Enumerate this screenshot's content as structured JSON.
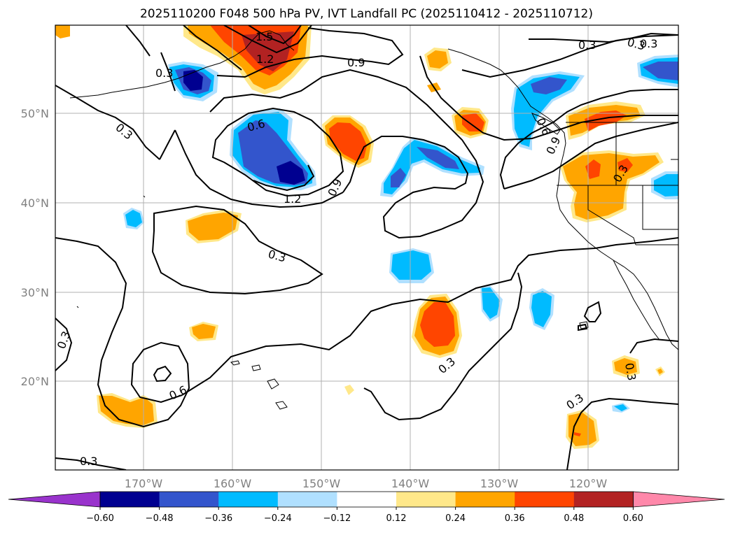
{
  "title": "2025110200 F048 500 hPa PV, IVT Landfall PC (2025110412 - 2025110712)",
  "lon_labels": [
    "170°W",
    "160°W",
    "150°W",
    "140°W",
    "130°W",
    "120°W"
  ],
  "lat_labels": [
    "50°N",
    "40°N",
    "30°N",
    "20°N"
  ],
  "contour_labels": [
    "0.3",
    "0.3",
    "1.5",
    "1.2",
    "0.9",
    "0.3",
    "0.3",
    "0.6",
    "1.2",
    "0.9",
    "0.6",
    "0.9",
    "0.3",
    "0.3",
    "0.3",
    "0.6",
    "0.3",
    "0.3",
    "0.3",
    "0.3",
    "0.3"
  ],
  "colorbar": {
    "colors": [
      "#9933cc",
      "#000090",
      "#3355cc",
      "#00bbff",
      "#b0e0ff",
      "#ffffff",
      "#ffe88a",
      "#ffa500",
      "#ff4500",
      "#b22222",
      "#ff88aa"
    ],
    "tick_labels": [
      "−0.60",
      "−0.48",
      "−0.36",
      "−0.24",
      "−0.12",
      "0.12",
      "0.24",
      "0.36",
      "0.48",
      "0.60"
    ]
  }
}
